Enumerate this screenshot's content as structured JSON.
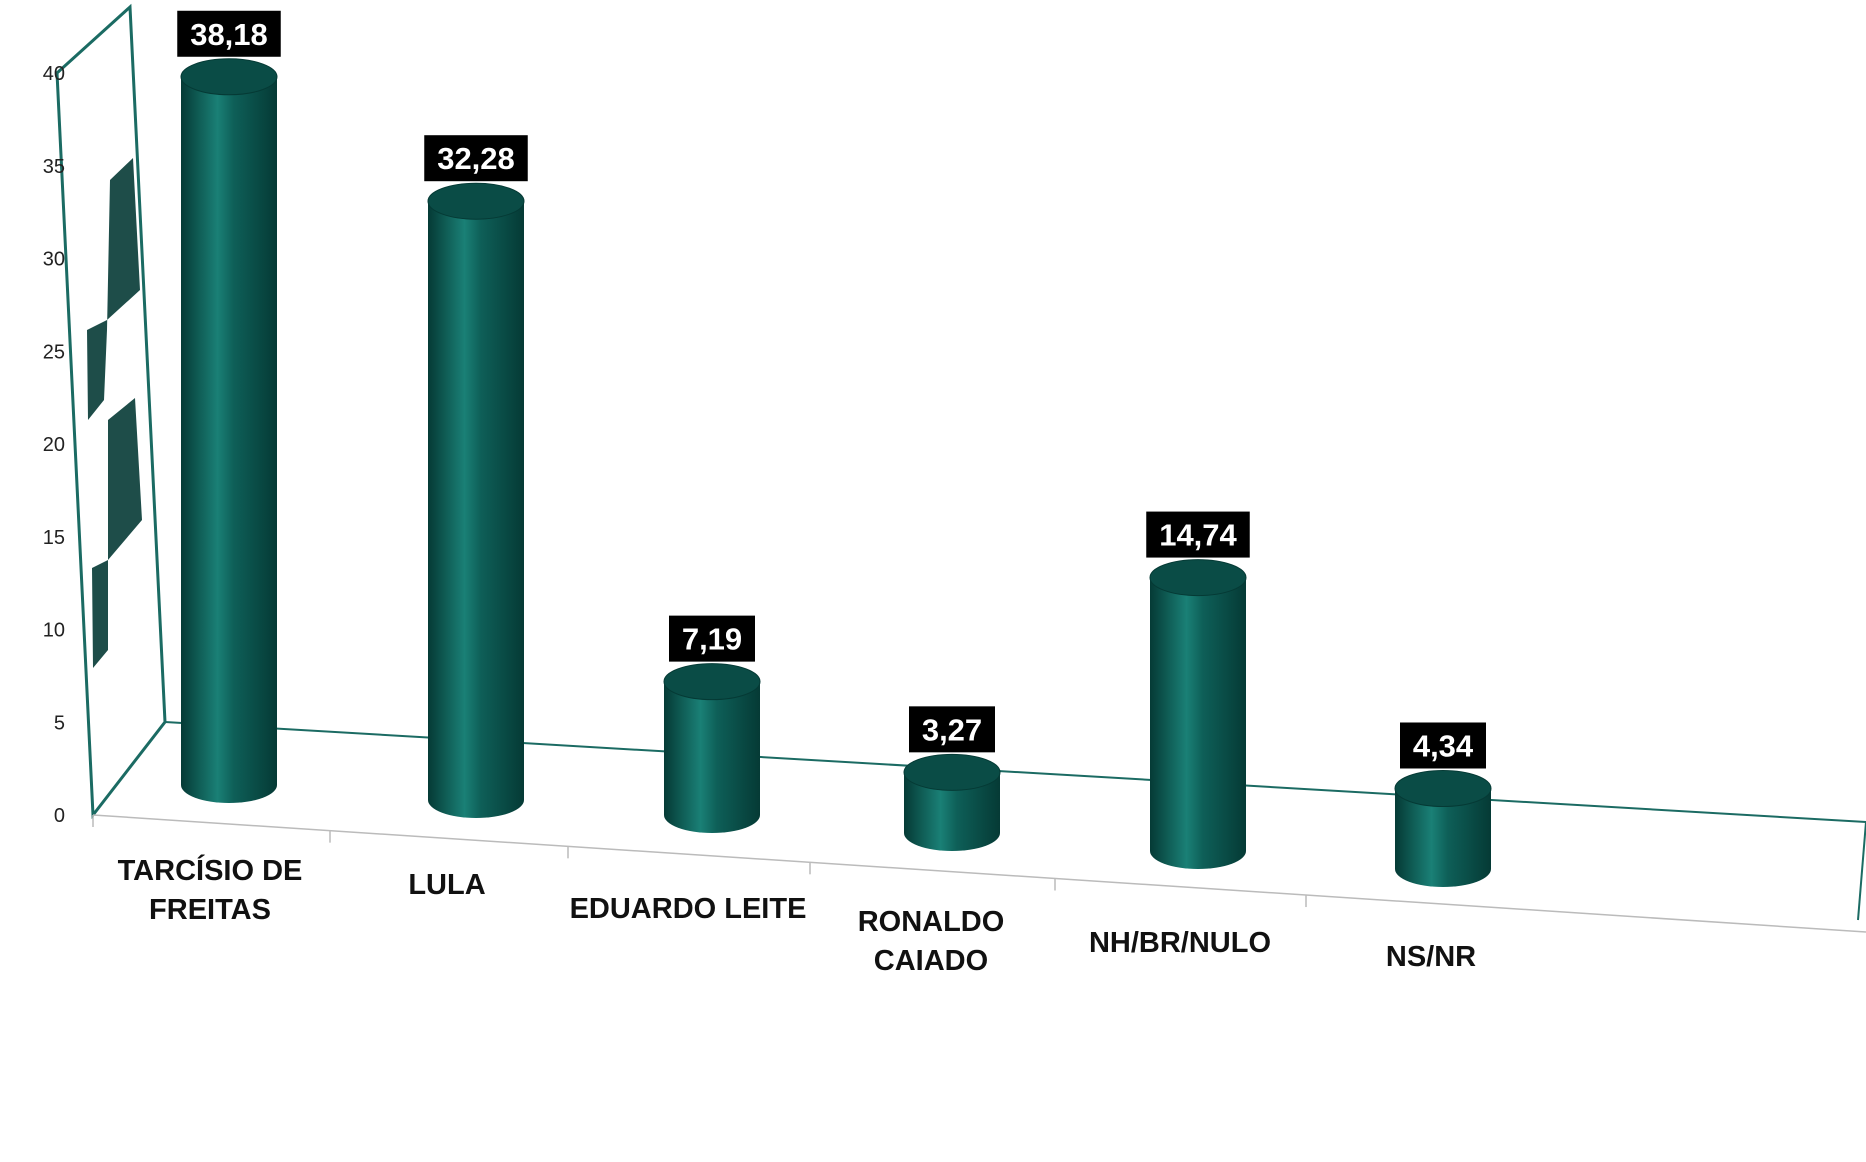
{
  "chart_data": {
    "type": "bar",
    "style": "3d-cylinder",
    "categories": [
      [
        "TARCÍSIO DE",
        "FREITAS"
      ],
      [
        "LULA"
      ],
      [
        "EDUARDO LEITE"
      ],
      [
        "RONALDO",
        "CAIADO"
      ],
      [
        "NH/BR/NULO"
      ],
      [
        "NS/NR"
      ]
    ],
    "values": [
      38.18,
      32.28,
      7.19,
      3.27,
      14.74,
      4.34
    ],
    "value_labels": [
      "38,18",
      "32,28",
      "7,19",
      "3,27",
      "14,74",
      "4,34"
    ],
    "yticks": [
      0,
      5,
      10,
      15,
      20,
      25,
      30,
      35,
      40
    ],
    "ylim": [
      0,
      40
    ],
    "grid": false,
    "legend": "none",
    "colors": {
      "bar": "#0e5f58",
      "bar_dark": "#053a35",
      "bar_light": "#1a8076",
      "bar_top": "#0a4c46",
      "axis": "#1b6b63",
      "label_bg": "#000000",
      "label_text": "#ffffff"
    }
  }
}
